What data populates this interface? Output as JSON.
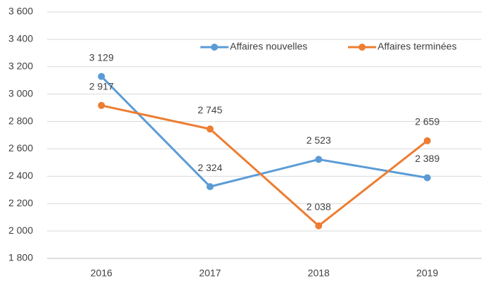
{
  "chart_data": {
    "type": "line",
    "categories": [
      "2016",
      "2017",
      "2018",
      "2019"
    ],
    "series": [
      {
        "name": "Affaires nouvelles",
        "color": "#5b9bd5",
        "values": [
          3129,
          2324,
          2523,
          2389
        ],
        "value_labels": [
          "3 129",
          "2 324",
          "2 523",
          "2 389"
        ]
      },
      {
        "name": "Affaires terminées",
        "color": "#ed7d31",
        "values": [
          2917,
          2745,
          2038,
          2659
        ],
        "value_labels": [
          "2 917",
          "2 745",
          "2 038",
          "2 659"
        ]
      }
    ],
    "ylim": [
      1800,
      3600
    ],
    "yticks": [
      {
        "value": 1800,
        "label": "1 800"
      },
      {
        "value": 2000,
        "label": "2 000"
      },
      {
        "value": 2200,
        "label": "2 200"
      },
      {
        "value": 2400,
        "label": "2 400"
      },
      {
        "value": 2600,
        "label": "2 600"
      },
      {
        "value": 2800,
        "label": "2 800"
      },
      {
        "value": 3000,
        "label": "3 000"
      },
      {
        "value": 3200,
        "label": "3 200"
      },
      {
        "value": 3400,
        "label": "3 400"
      },
      {
        "value": 3600,
        "label": "3 600"
      }
    ],
    "grid": true,
    "legend": "top-right"
  }
}
